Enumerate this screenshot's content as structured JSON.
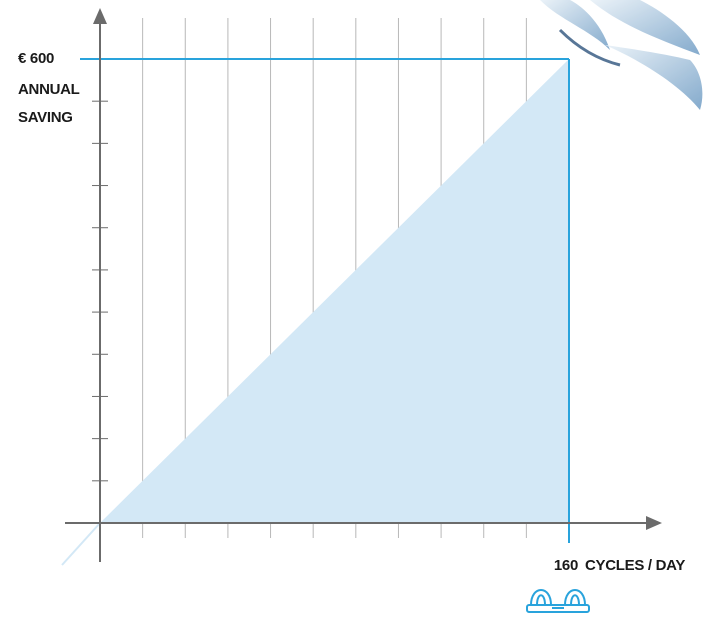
{
  "chart_data": {
    "type": "area",
    "x": [
      0,
      160
    ],
    "values": [
      0,
      600
    ],
    "color": "#29a3dc",
    "fill": "#d3e8f6",
    "xlim": [
      0,
      160
    ],
    "ylim": [
      0,
      600
    ],
    "xticks": [
      160
    ],
    "yticks": [
      {
        "value": 600,
        "label": "€ 600"
      }
    ],
    "y_label": [
      "ANNUAL",
      "SAVING"
    ],
    "x_label": "CYCLES / DAY",
    "grid": true
  }
}
